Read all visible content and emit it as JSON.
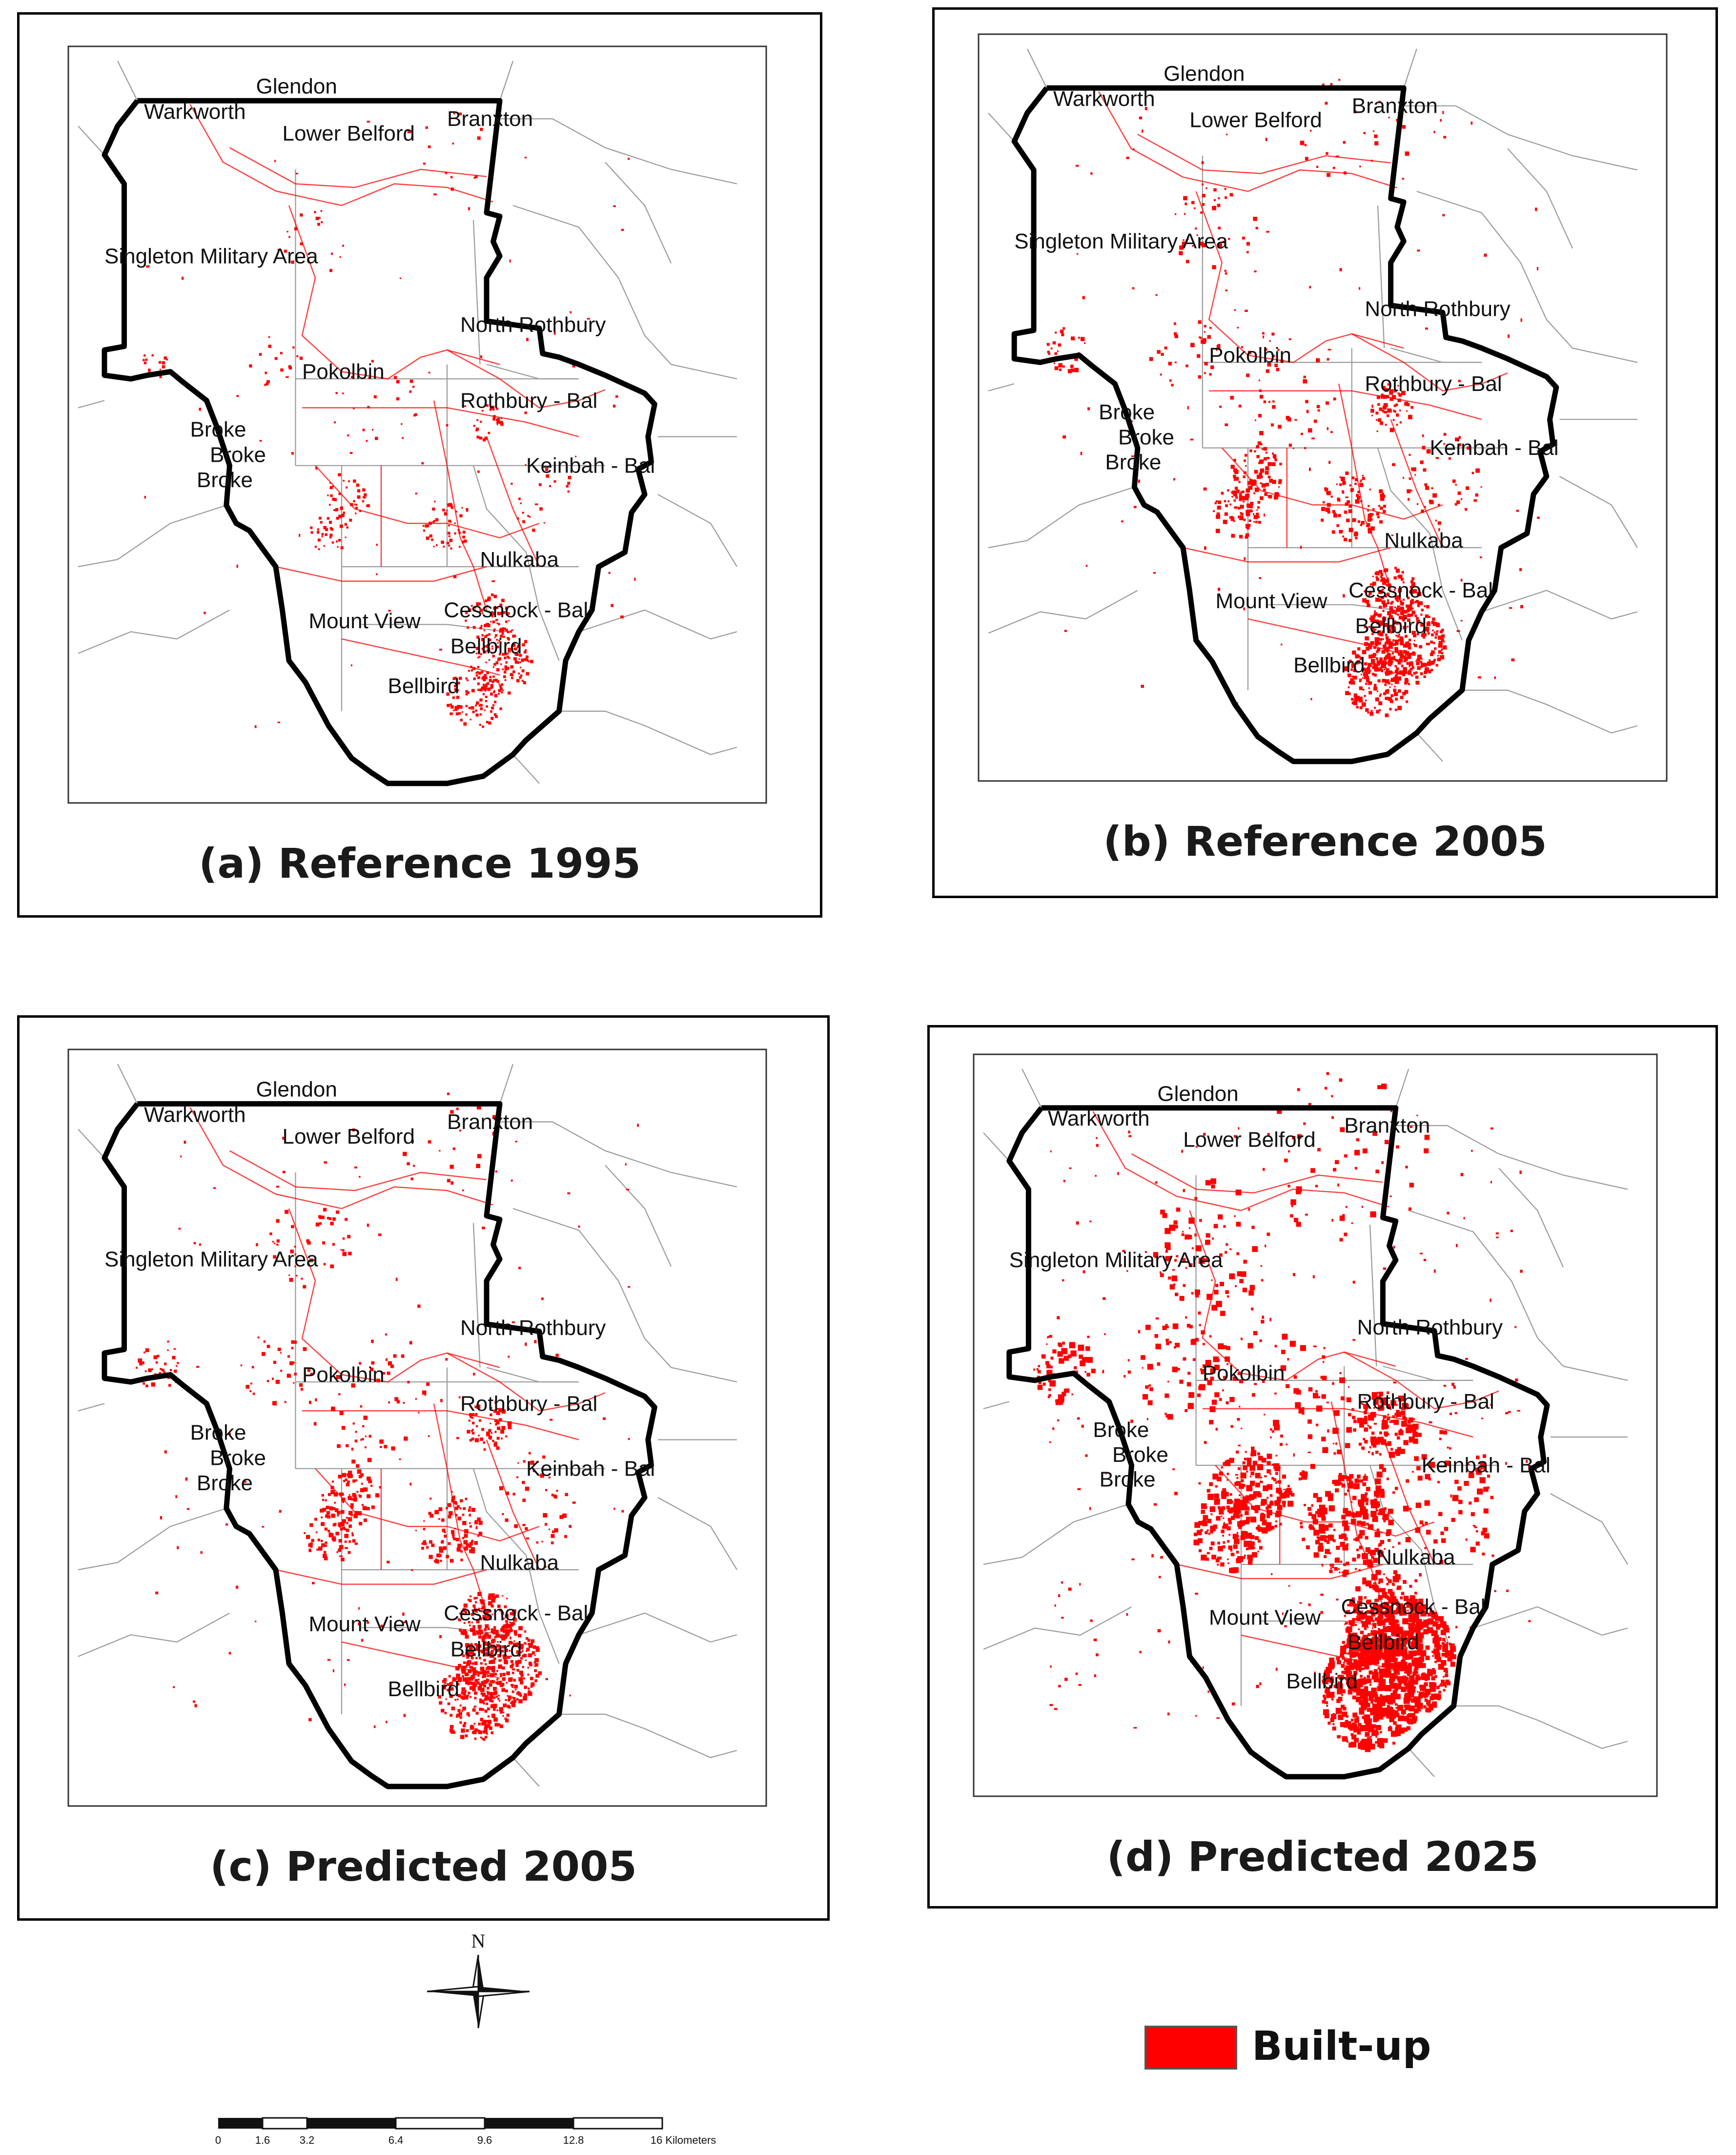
{
  "panels": [
    {
      "id": "a",
      "title": "(a) Reference 1995",
      "density": 1
    },
    {
      "id": "b",
      "title": "(b) Reference 2005",
      "density": 2
    },
    {
      "id": "c",
      "title": "(c) Predicted 2005",
      "density": 2
    },
    {
      "id": "d",
      "title": "(d) Predicted 2025",
      "density": 4
    }
  ],
  "places": {
    "glendon": "Glendon",
    "warkworth": "Warkworth",
    "lower_belford": "Lower Belford",
    "branxton": "Branxton",
    "singleton": "Singleton Military Area",
    "north_rothbury": "North Rothbury",
    "pokolbin": "Pokolbin",
    "rothbury_bal": "Rothbury - Bal",
    "broke": "Broke",
    "keinbah_bal": "Keinbah - Bal",
    "nulkaba": "Nulkaba",
    "cessnock_bal": "Cessnock - Bal",
    "mount_view": "Mount View",
    "bellbird": "Bellbird"
  },
  "north_label": "N",
  "scale_bar": {
    "ticks": [
      "0",
      "1.6",
      "3.2",
      "6.4",
      "9.6",
      "12.8",
      "16 Kilometers"
    ]
  },
  "legend": {
    "label": "Built-up",
    "color": "#ff0000"
  },
  "colors": {
    "built_up": "#ff0000",
    "boundary": "#000000",
    "admin_lines": "#9a9a9a"
  }
}
